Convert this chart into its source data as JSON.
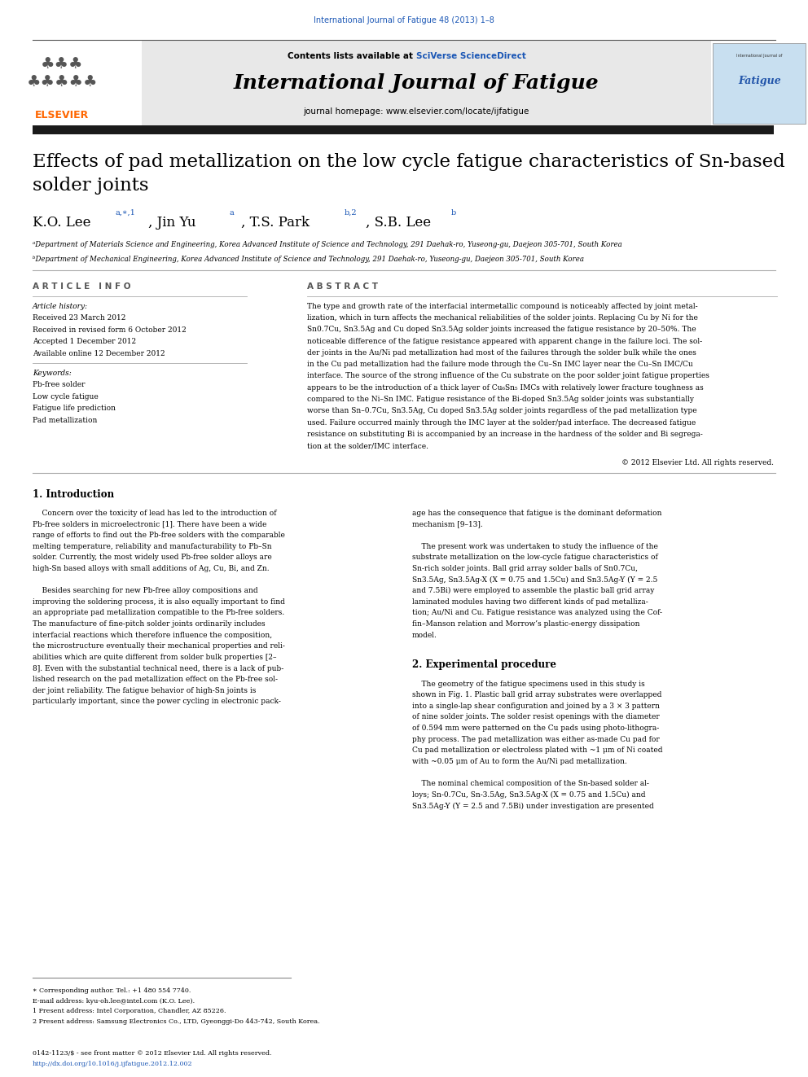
{
  "page_width": 9.92,
  "page_height": 13.23,
  "bg_color": "#ffffff",
  "header_blue_text": "International Journal of Fatigue 48 (2013) 1–8",
  "header_blue_color": "#1a56b5",
  "journal_header_bg": "#e8e8e8",
  "journal_title": "International Journal of Fatigue",
  "journal_homepage": "journal homepage: www.elsevier.com/locate/ijfatigue",
  "contents_text": "Contents lists available at ",
  "sciverse_text": "SciVerse ScienceDirect",
  "elsevier_color": "#ff6600",
  "article_title": "Effects of pad metallization on the low cycle fatigue characteristics of Sn-based\nsolder joints",
  "authors_superscript": "a,∗,1",
  "authors2_superscript": "a",
  "authors3_superscript": "b,2",
  "authors4_superscript": "b",
  "affil_a": "ᵃDepartment of Materials Science and Engineering, Korea Advanced Institute of Science and Technology, 291 Daehak-ro, Yuseong-gu, Daejeon 305-701, South Korea",
  "affil_b": "ᵇDepartment of Mechanical Engineering, Korea Advanced Institute of Science and Technology, 291 Daehak-ro, Yuseong-gu, Daejeon 305-701, South Korea",
  "article_info_header": "A R T I C L E   I N F O",
  "abstract_header": "A B S T R A C T",
  "article_history_label": "Article history:",
  "received": "Received 23 March 2012",
  "received_revised": "Received in revised form 6 October 2012",
  "accepted": "Accepted 1 December 2012",
  "available": "Available online 12 December 2012",
  "keywords_label": "Keywords:",
  "keyword1": "Pb-free solder",
  "keyword2": "Low cycle fatigue",
  "keyword3": "Fatigue life prediction",
  "keyword4": "Pad metallization",
  "abstract_lines": [
    "The type and growth rate of the interfacial intermetallic compound is noticeably affected by joint metal-",
    "lization, which in turn affects the mechanical reliabilities of the solder joints. Replacing Cu by Ni for the",
    "Sn0.7Cu, Sn3.5Ag and Cu doped Sn3.5Ag solder joints increased the fatigue resistance by 20–50%. The",
    "noticeable difference of the fatigue resistance appeared with apparent change in the failure loci. The sol-",
    "der joints in the Au/Ni pad metallization had most of the failures through the solder bulk while the ones",
    "in the Cu pad metallization had the failure mode through the Cu–Sn IMC layer near the Cu–Sn IMC/Cu",
    "interface. The source of the strong influence of the Cu substrate on the poor solder joint fatigue properties",
    "appears to be the introduction of a thick layer of Cu₆Sn₅ IMCs with relatively lower fracture toughness as",
    "compared to the Ni–Sn IMC. Fatigue resistance of the Bi-doped Sn3.5Ag solder joints was substantially",
    "worse than Sn–0.7Cu, Sn3.5Ag, Cu doped Sn3.5Ag solder joints regardless of the pad metallization type",
    "used. Failure occurred mainly through the IMC layer at the solder/pad interface. The decreased fatigue",
    "resistance on substituting Bi is accompanied by an increase in the hardness of the solder and Bi segrega-",
    "tion at the solder/IMC interface."
  ],
  "copyright_text": "© 2012 Elsevier Ltd. All rights reserved.",
  "intro_header": "1. Introduction",
  "intro_left_lines": [
    "    Concern over the toxicity of lead has led to the introduction of",
    "Pb-free solders in microelectronic [1]. There have been a wide",
    "range of efforts to find out the Pb-free solders with the comparable",
    "melting temperature, reliability and manufacturability to Pb–Sn",
    "solder. Currently, the most widely used Pb-free solder alloys are",
    "high-Sn based alloys with small additions of Ag, Cu, Bi, and Zn.",
    "",
    "    Besides searching for new Pb-free alloy compositions and",
    "improving the soldering process, it is also equally important to find",
    "an appropriate pad metallization compatible to the Pb-free solders.",
    "The manufacture of fine-pitch solder joints ordinarily includes",
    "interfacial reactions which therefore influence the composition,",
    "the microstructure eventually their mechanical properties and reli-",
    "abilities which are quite different from solder bulk properties [2–",
    "8]. Even with the substantial technical need, there is a lack of pub-",
    "lished research on the pad metallization effect on the Pb-free sol-",
    "der joint reliability. The fatigue behavior of high-Sn joints is",
    "particularly important, since the power cycling in electronic pack-"
  ],
  "intro_right_lines": [
    "age has the consequence that fatigue is the dominant deformation",
    "mechanism [9–13].",
    "",
    "    The present work was undertaken to study the influence of the",
    "substrate metallization on the low-cycle fatigue characteristics of",
    "Sn-rich solder joints. Ball grid array solder balls of Sn0.7Cu,",
    "Sn3.5Ag, Sn3.5Ag-X (X = 0.75 and 1.5Cu) and Sn3.5Ag-Y (Y = 2.5",
    "and 7.5Bi) were employed to assemble the plastic ball grid array",
    "laminated modules having two different kinds of pad metalliza-",
    "tion; Au/Ni and Cu. Fatigue resistance was analyzed using the Cof-",
    "fin–Manson relation and Morrow’s plastic-energy dissipation",
    "model."
  ],
  "exp_header": "2. Experimental procedure",
  "exp_right_lines": [
    "    The geometry of the fatigue specimens used in this study is",
    "shown in Fig. 1. Plastic ball grid array substrates were overlapped",
    "into a single-lap shear configuration and joined by a 3 × 3 pattern",
    "of nine solder joints. The solder resist openings with the diameter",
    "of 0.594 mm were patterned on the Cu pads using photo-lithogra-",
    "phy process. The pad metallization was either as-made Cu pad for",
    "Cu pad metallization or electroless plated with ~1 μm of Ni coated",
    "with ~0.05 μm of Au to form the Au/Ni pad metallization.",
    "",
    "    The nominal chemical composition of the Sn-based solder al-",
    "loys; Sn-0.7Cu, Sn-3.5Ag, Sn3.5Ag-X (X = 0.75 and 1.5Cu) and",
    "Sn3.5Ag-Y (Y = 2.5 and 7.5Bi) under investigation are presented"
  ],
  "footnote_star": "∗ Corresponding author. Tel.: +1 480 554 7740.",
  "footnote_email": "E-mail address: kyu-oh.lee@intel.com (K.O. Lee).",
  "footnote_1": "1 Present address: Intel Corporation, Chandler, AZ 85226.",
  "footnote_2": "2 Present address: Samsung Electronics Co., LTD, Gyeonggi-Do 443-742, South Korea.",
  "issn_text": "0142-1123/$ - see front matter © 2012 Elsevier Ltd. All rights reserved.",
  "doi_text": "http://dx.doi.org/10.1016/j.ijfatigue.2012.12.002",
  "link_color": "#1a56b5",
  "thick_bar_color": "#1a1a1a",
  "thin_line_color": "#888888"
}
